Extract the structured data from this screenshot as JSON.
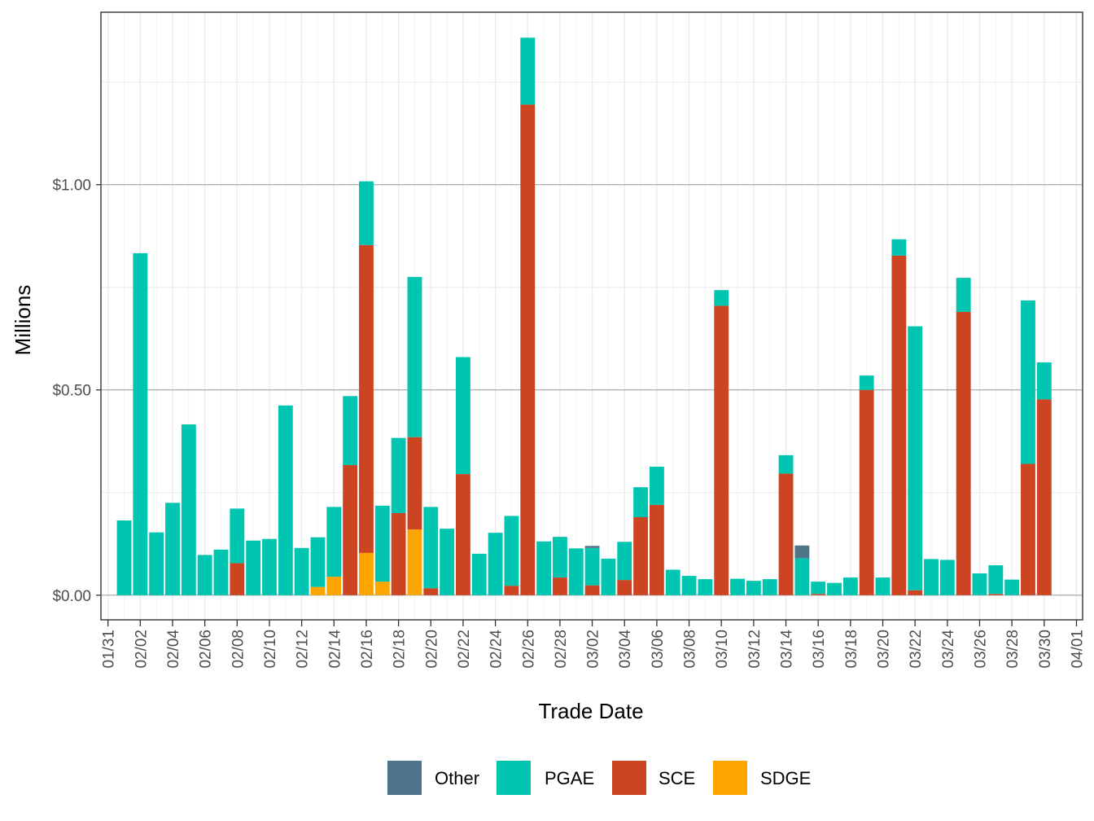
{
  "chart_data": {
    "type": "bar",
    "stacked": true,
    "title": "",
    "xlabel": "Trade Date",
    "ylabel": "Millions",
    "y_tick_labels": [
      "$0.00",
      "$0.50",
      "$1.00"
    ],
    "y_ticks": [
      0,
      0.5,
      1.0
    ],
    "ylim": [
      -0.06,
      1.42
    ],
    "grid": true,
    "legend": {
      "position": "bottom"
    },
    "x_tick_labels": [
      "01/31",
      "02/02",
      "02/04",
      "02/06",
      "02/08",
      "02/10",
      "02/12",
      "02/14",
      "02/16",
      "02/18",
      "02/20",
      "02/22",
      "02/24",
      "02/26",
      "02/28",
      "03/02",
      "03/04",
      "03/06",
      "03/08",
      "03/10",
      "03/12",
      "03/14",
      "03/16",
      "03/18",
      "03/20",
      "03/22",
      "03/24",
      "03/26",
      "03/28",
      "03/30",
      "04/01"
    ],
    "categories": [
      "02/01",
      "02/02",
      "02/03",
      "02/04",
      "02/05",
      "02/06",
      "02/07",
      "02/08",
      "02/09",
      "02/10",
      "02/11",
      "02/12",
      "02/13",
      "02/14",
      "02/15",
      "02/16",
      "02/17",
      "02/18",
      "02/19",
      "02/20",
      "02/21",
      "02/22",
      "02/23",
      "02/24",
      "02/25",
      "02/26",
      "02/27",
      "02/28",
      "03/01",
      "03/02",
      "03/03",
      "03/04",
      "03/05",
      "03/06",
      "03/07",
      "03/08",
      "03/09",
      "03/10",
      "03/11",
      "03/12",
      "03/13",
      "03/14",
      "03/15",
      "03/16",
      "03/17",
      "03/18",
      "03/19",
      "03/20",
      "03/21",
      "03/22",
      "03/23",
      "03/24",
      "03/25",
      "03/26",
      "03/27",
      "03/28",
      "03/29",
      "03/30",
      "03/31"
    ],
    "series": [
      {
        "name": "SDGE",
        "color": "#FFA500",
        "values": [
          0,
          0,
          0,
          0,
          0,
          0,
          0,
          0,
          0,
          0,
          0,
          0,
          0.02,
          0.045,
          0,
          0.103,
          0.033,
          0,
          0.16,
          0,
          0,
          0,
          0,
          0,
          0,
          0,
          0,
          0,
          0,
          0,
          0,
          0,
          0,
          0,
          0,
          0,
          0,
          0,
          0,
          0,
          0,
          0,
          0,
          0,
          0,
          0,
          0,
          0,
          0,
          0,
          0,
          0,
          0,
          0,
          0,
          0,
          0,
          0,
          0
        ]
      },
      {
        "name": "SCE",
        "color": "#CC4422",
        "values": [
          0,
          0,
          0,
          0,
          0,
          0,
          0,
          0.078,
          0,
          0,
          0,
          0,
          0,
          0,
          0.317,
          0.75,
          0,
          0.2,
          0.225,
          0.017,
          0,
          0.295,
          0,
          0,
          0.023,
          1.195,
          0,
          0.043,
          0,
          0.024,
          0,
          0.037,
          0.19,
          0.22,
          0,
          0,
          0,
          0.705,
          0,
          0,
          0,
          0.296,
          0,
          0.003,
          0,
          0,
          0.5,
          0,
          0.827,
          0.012,
          0,
          0,
          0.69,
          0,
          0.003,
          0,
          0.32,
          0.477,
          0
        ]
      },
      {
        "name": "PGAE",
        "color": "#00C5B0",
        "values": [
          0.182,
          0.833,
          0.153,
          0.225,
          0.416,
          0.098,
          0.111,
          0.133,
          0.133,
          0.137,
          0.462,
          0.115,
          0.121,
          0.17,
          0.168,
          0.155,
          0.185,
          0.183,
          0.39,
          0.198,
          0.162,
          0.285,
          0.101,
          0.152,
          0.17,
          0.163,
          0.131,
          0.099,
          0.114,
          0.091,
          0.089,
          0.093,
          0.073,
          0.093,
          0.062,
          0.047,
          0.039,
          0.038,
          0.04,
          0.035,
          0.039,
          0.045,
          0.09,
          0.03,
          0.03,
          0.043,
          0.035,
          0.043,
          0.04,
          0.643,
          0.088,
          0.086,
          0.083,
          0.053,
          0.07,
          0.038,
          0.398,
          0.09,
          0
        ]
      },
      {
        "name": "Other",
        "color": "#4E7489",
        "values": [
          0,
          0,
          0,
          0,
          0,
          0,
          0,
          0,
          0,
          0,
          0,
          0,
          0,
          0,
          0,
          0,
          0,
          0,
          0,
          0,
          0,
          0,
          0,
          0,
          0,
          0,
          0,
          0,
          0,
          0.005,
          0,
          0,
          0,
          0,
          0,
          0,
          0,
          0,
          0,
          0,
          0,
          0,
          0.031,
          0,
          0,
          0,
          0,
          0,
          0,
          0,
          0,
          0,
          0,
          0,
          0,
          0,
          0,
          0,
          0
        ]
      }
    ],
    "legend_order": [
      "Other",
      "PGAE",
      "SCE",
      "SDGE"
    ]
  }
}
